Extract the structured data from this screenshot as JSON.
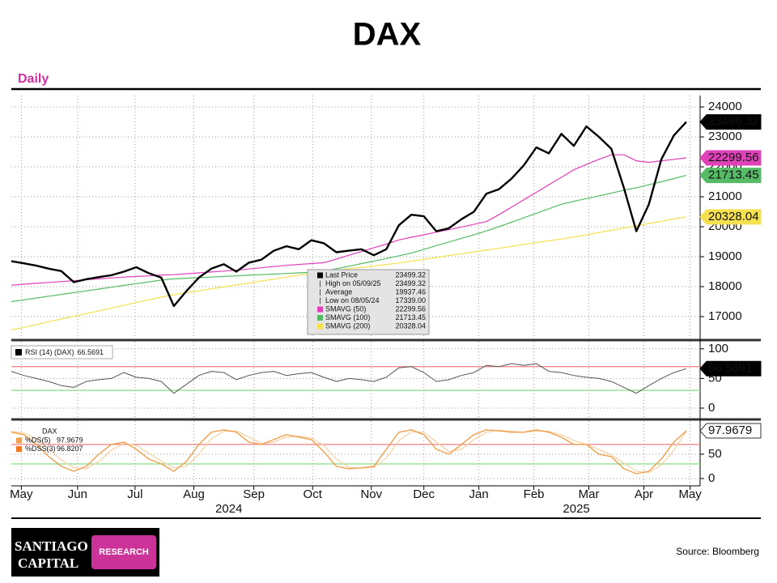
{
  "header": {
    "title": "DAX",
    "subtitle": "Daily"
  },
  "chart_data": [
    {
      "type": "line",
      "xlim": [
        0,
        55.1
      ],
      "ylim": [
        16270,
        24380
      ],
      "yticks": [
        17000,
        18000,
        19000,
        20000,
        21000,
        22000,
        23000,
        24000
      ],
      "grid": true,
      "series": [
        {
          "name": "Last Price",
          "color": "#000000",
          "width": 2.4,
          "box_text_color": "#ffffff",
          "last_value_box": true,
          "values": [
            18850,
            18780,
            18700,
            18600,
            18520,
            18150,
            18250,
            18320,
            18380,
            18500,
            18650,
            18450,
            18300,
            17350,
            17850,
            18300,
            18600,
            18750,
            18500,
            18800,
            18900,
            19200,
            19350,
            19250,
            19550,
            19450,
            19150,
            19200,
            19250,
            19050,
            19250,
            20050,
            20400,
            20350,
            19850,
            19950,
            20250,
            20500,
            21100,
            21250,
            21600,
            22050,
            22650,
            22450,
            23100,
            22700,
            23350,
            23000,
            22600,
            21300,
            19850,
            20750,
            22250,
            23050,
            23499.32
          ]
        },
        {
          "name": "SMAVG (50)",
          "color": "#e040b8",
          "width": 1.2,
          "box_text_color": "#ffffff",
          "last_value_box": true,
          "values": [
            18050,
            18080,
            18110,
            18140,
            18170,
            18200,
            18230,
            18260,
            18290,
            18320,
            18340,
            18360,
            18390,
            18400,
            18430,
            18460,
            18490,
            18520,
            18550,
            18590,
            18630,
            18670,
            18710,
            18740,
            18770,
            18800,
            18920,
            19050,
            19170,
            19300,
            19420,
            19560,
            19650,
            19730,
            19820,
            19900,
            19990,
            20080,
            20170,
            20400,
            20650,
            20900,
            21150,
            21400,
            21650,
            21900,
            22080,
            22250,
            22400,
            22400,
            22200,
            22150,
            22200,
            22250,
            22299.56
          ]
        },
        {
          "name": "SMAVG (100)",
          "color": "#55bb66",
          "width": 1.2,
          "box_text_color": "#ffffff",
          "last_value_box": true,
          "values": [
            17500,
            17560,
            17620,
            17680,
            17740,
            17800,
            17860,
            17920,
            17980,
            18040,
            18100,
            18160,
            18220,
            18260,
            18280,
            18300,
            18320,
            18340,
            18360,
            18380,
            18400,
            18420,
            18440,
            18460,
            18480,
            18510,
            18600,
            18680,
            18770,
            18850,
            18940,
            19030,
            19120,
            19240,
            19370,
            19490,
            19610,
            19730,
            19860,
            20000,
            20150,
            20300,
            20450,
            20600,
            20750,
            20850,
            20940,
            21030,
            21120,
            21220,
            21300,
            21400,
            21500,
            21610,
            21713.45
          ]
        },
        {
          "name": "SMAVG (200)",
          "color": "#f5e050",
          "width": 1.2,
          "box_text_color": "#000000",
          "last_value_box": true,
          "values": [
            16550,
            16640,
            16730,
            16830,
            16920,
            17010,
            17100,
            17190,
            17280,
            17380,
            17470,
            17560,
            17650,
            17730,
            17800,
            17860,
            17930,
            17990,
            18060,
            18120,
            18190,
            18250,
            18320,
            18380,
            18440,
            18500,
            18550,
            18600,
            18640,
            18690,
            18740,
            18790,
            18850,
            18910,
            18970,
            19040,
            19100,
            19160,
            19220,
            19280,
            19340,
            19410,
            19470,
            19530,
            19590,
            19660,
            19730,
            19810,
            19880,
            19960,
            20030,
            20110,
            20180,
            20260,
            20328.04
          ]
        }
      ],
      "legend_stats": [
        {
          "label": "High on 05/09/25",
          "value": 23499.32
        },
        {
          "label": "Average",
          "value": 19937.46
        },
        {
          "label": "Low on 08/05/24",
          "value": 17339,
          "value_label": "17339.00"
        }
      ]
    },
    {
      "type": "line",
      "xlim": [
        0,
        55.1
      ],
      "ylim": [
        -15,
        112
      ],
      "yticks": [
        0,
        50,
        100
      ],
      "grid": true,
      "ref_lines": [
        {
          "value": 70,
          "color": "#f08080"
        },
        {
          "value": 30,
          "color": "#90e090"
        }
      ],
      "series": [
        {
          "name": "RSI (14) (DAX)",
          "color": "#555555",
          "width": 1,
          "box_text_color": "#ffffff",
          "box_color": "#000000",
          "last_value_box": true,
          "values": [
            62,
            55,
            50,
            45,
            38,
            35,
            45,
            48,
            50,
            60,
            52,
            50,
            45,
            25,
            40,
            55,
            62,
            60,
            48,
            55,
            60,
            62,
            55,
            58,
            60,
            52,
            45,
            50,
            48,
            45,
            52,
            68,
            70,
            60,
            45,
            48,
            55,
            60,
            72,
            70,
            75,
            72,
            75,
            62,
            60,
            55,
            52,
            50,
            45,
            35,
            25,
            38,
            50,
            60,
            66.5691
          ]
        }
      ]
    },
    {
      "type": "line",
      "xlim": [
        0,
        55.1
      ],
      "ylim": [
        -15,
        118
      ],
      "yticks": [
        0,
        50
      ],
      "grid": true,
      "legend_title": "DAX",
      "ref_lines": [
        {
          "value": 70,
          "color": "#f08080"
        },
        {
          "value": 30,
          "color": "#90e090"
        }
      ],
      "series": [
        {
          "name": "%DS(5)",
          "color": "#f0a050",
          "width": 1.4,
          "box_text_color": "#000000",
          "box_color": "#ffffff",
          "last_value_box": true,
          "values": [
            95,
            90,
            70,
            45,
            25,
            15,
            25,
            50,
            70,
            75,
            60,
            40,
            30,
            15,
            35,
            70,
            95,
            100,
            95,
            75,
            70,
            80,
            90,
            85,
            80,
            55,
            25,
            20,
            22,
            25,
            60,
            95,
            100,
            90,
            60,
            50,
            70,
            90,
            100,
            98,
            95,
            95,
            100,
            95,
            85,
            70,
            70,
            50,
            45,
            20,
            10,
            15,
            40,
            75,
            97.9679
          ]
        },
        {
          "name": "%DSS(3)",
          "color": "#f8d0a0",
          "width": 1.2,
          "last_value_box": false,
          "values": [
            97,
            93,
            82,
            60,
            38,
            22,
            20,
            35,
            58,
            72,
            68,
            52,
            36,
            22,
            25,
            50,
            82,
            97,
            98,
            85,
            72,
            75,
            85,
            87,
            83,
            68,
            40,
            23,
            21,
            23,
            42,
            78,
            96,
            95,
            75,
            55,
            60,
            80,
            95,
            99,
            97,
            95,
            97,
            97,
            90,
            78,
            70,
            60,
            48,
            32,
            15,
            12,
            28,
            58,
            96.8207
          ]
        }
      ],
      "xticks": [
        {
          "value": 0.8,
          "label": "May"
        },
        {
          "value": 5.3,
          "label": "Jun"
        },
        {
          "value": 9.9,
          "label": "Jul"
        },
        {
          "value": 14.6,
          "label": "Aug"
        },
        {
          "value": 19.4,
          "label": "Sep"
        },
        {
          "value": 24.1,
          "label": "Oct"
        },
        {
          "value": 28.8,
          "label": "Nov"
        },
        {
          "value": 33.0,
          "label": "Dec"
        },
        {
          "value": 37.4,
          "label": "Jan"
        },
        {
          "value": 41.8,
          "label": "Feb"
        },
        {
          "value": 46.2,
          "label": "Mar"
        },
        {
          "value": 50.6,
          "label": "Apr"
        },
        {
          "value": 54.3,
          "label": "May"
        }
      ],
      "year_ticks": [
        {
          "value": 17.4,
          "label": "2024"
        },
        {
          "value": 45.2,
          "label": "2025"
        }
      ]
    }
  ],
  "footer": {
    "logo_line1": "SANTIAGO",
    "logo_line2": "CAPITAL",
    "logo_tag": "RESEARCH",
    "source": "Source: Bloomberg"
  }
}
